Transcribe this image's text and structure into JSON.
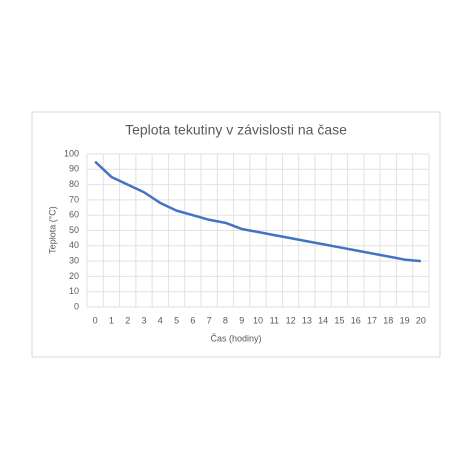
{
  "chart_data": {
    "type": "line",
    "title": "Teplota tekutiny v závislosti na čase",
    "x_label": "Čas (hodiny)",
    "y_label": "Teplota (°C)",
    "categories": [
      "0",
      "1",
      "2",
      "3",
      "4",
      "5",
      "6",
      "7",
      "8",
      "9",
      "10",
      "11",
      "12",
      "13",
      "14",
      "15",
      "16",
      "17",
      "18",
      "19",
      "20"
    ],
    "series": [
      {
        "name": "Teplota",
        "color": "#4472c4",
        "values": [
          95,
          85,
          80,
          75,
          68,
          63,
          60,
          57,
          55,
          51,
          49,
          47,
          45,
          43,
          41,
          39,
          37,
          35,
          33,
          31,
          30
        ]
      }
    ],
    "ylim": [
      0,
      100
    ],
    "yticks": [
      0,
      10,
      20,
      30,
      40,
      50,
      60,
      70,
      80,
      90,
      100
    ],
    "grid": true,
    "legend": false
  }
}
